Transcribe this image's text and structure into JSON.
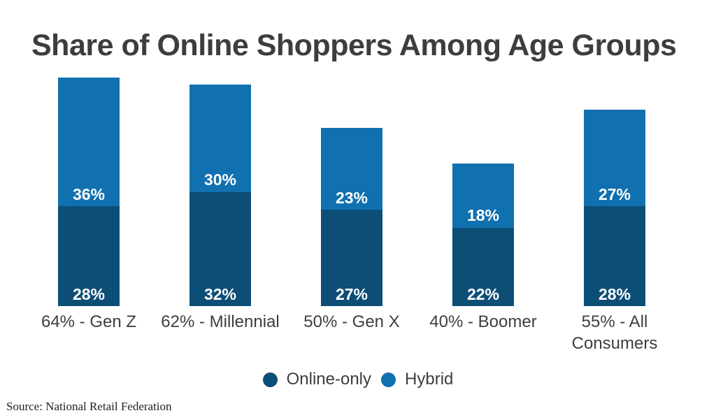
{
  "title": "Share of Online Shoppers Among Age Groups",
  "source": "Source: National Retail Federation",
  "colors": {
    "online_only": "#0D4E76",
    "hybrid": "#1170B0",
    "title_text": "#3D3D3D",
    "axis_text": "#3E3E3E",
    "background": "#FFFFFF",
    "value_label_text": "#FFFFFF"
  },
  "legend": {
    "position": "bottom-center",
    "items": [
      {
        "label": "Online-only",
        "color_key": "online_only"
      },
      {
        "label": "Hybrid",
        "color_key": "hybrid"
      }
    ]
  },
  "chart_data": {
    "type": "bar",
    "stacked": true,
    "orientation": "vertical",
    "unit": "%",
    "title": "Share of Online Shoppers Among Age Groups",
    "xlabel": "",
    "ylabel": "",
    "grid": false,
    "axes_shown": false,
    "value_labels_shown": true,
    "ylim": [
      0,
      66
    ],
    "categories": [
      "64% - Gen Z",
      "62% - Millennial",
      "50% - Gen X",
      "40% - Boomer",
      "55% - All Consumers"
    ],
    "category_totals": [
      64,
      62,
      50,
      40,
      55
    ],
    "series": [
      {
        "name": "Online-only",
        "color_key": "online_only",
        "values": [
          28,
          32,
          27,
          22,
          28
        ]
      },
      {
        "name": "Hybrid",
        "color_key": "hybrid",
        "values": [
          36,
          30,
          23,
          18,
          27
        ]
      }
    ]
  }
}
